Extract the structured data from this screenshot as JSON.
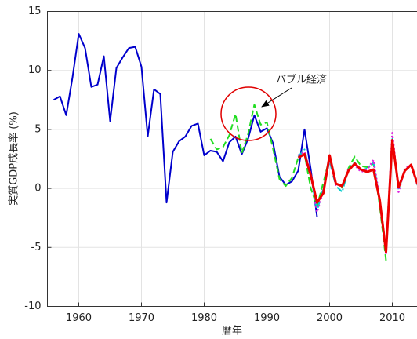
{
  "chart_data": {
    "type": "line",
    "xlabel": "暦年",
    "ylabel": "実質GDP成長率 (%)",
    "xlim": [
      1955,
      2015
    ],
    "xticks": [
      1960,
      1970,
      1980,
      1990,
      2000,
      2010
    ],
    "ylim": [
      -10,
      15
    ],
    "yticks": [
      -10,
      -5,
      0,
      5,
      10,
      15
    ],
    "grid": true,
    "annotations": [
      {
        "text": "バブル経済"
      }
    ],
    "series": [
      {
        "color": "#0000cc",
        "style": "solid",
        "width": 2,
        "x": [
          1956,
          1957,
          1958,
          1959,
          1960,
          1961,
          1962,
          1963,
          1964,
          1965,
          1966,
          1967,
          1968,
          1969,
          1970,
          1971,
          1972,
          1973,
          1974,
          1975,
          1976,
          1977,
          1978,
          1979,
          1980,
          1981,
          1982,
          1983,
          1984,
          1985,
          1986,
          1987,
          1988,
          1989,
          1990,
          1991,
          1992,
          1993,
          1994,
          1995,
          1996,
          1997,
          1998
        ],
        "values": [
          7.5,
          7.8,
          6.2,
          9.4,
          13.1,
          11.9,
          8.6,
          8.8,
          11.2,
          5.7,
          10.2,
          11.1,
          11.9,
          12.0,
          10.3,
          4.4,
          8.4,
          8.0,
          -1.2,
          3.1,
          4.0,
          4.4,
          5.3,
          5.5,
          2.8,
          3.2,
          3.1,
          2.3,
          3.9,
          4.4,
          2.9,
          4.2,
          6.2,
          4.8,
          5.1,
          3.8,
          1.0,
          0.3,
          0.6,
          1.5,
          5.0,
          1.6,
          -2.4
        ]
      },
      {
        "color": "#22dd22",
        "style": "dashed",
        "width": 2,
        "x": [
          1981,
          1982,
          1983,
          1984,
          1985,
          1986,
          1987,
          1988,
          1989,
          1990,
          1991,
          1992,
          1993,
          1994,
          1995,
          1996,
          1997,
          1998,
          1999,
          2000,
          2001,
          2002,
          2003,
          2004,
          2005,
          2006,
          2007,
          2008,
          2009
        ],
        "values": [
          4.2,
          3.3,
          3.5,
          4.5,
          6.3,
          3.0,
          4.6,
          7.1,
          5.4,
          5.6,
          3.3,
          0.8,
          0.2,
          0.9,
          2.6,
          2.9,
          0.0,
          -1.5,
          0.5,
          2.6,
          0.4,
          0.1,
          1.7,
          2.7,
          1.9,
          1.8,
          2.1,
          -1.5,
          -6.1
        ]
      },
      {
        "color": "#00cccc",
        "style": "dashdot",
        "width": 2,
        "x": [
          1995,
          1996,
          1997,
          1998,
          1999,
          2000,
          2001,
          2002,
          2003,
          2004,
          2005,
          2006,
          2007,
          2008,
          2009,
          2010,
          2011,
          2012,
          2013,
          2014,
          2015
        ],
        "values": [
          2.7,
          3.3,
          1.1,
          -1.9,
          0.0,
          2.3,
          0.2,
          -0.3,
          1.6,
          2.2,
          1.5,
          1.7,
          2.2,
          -1.0,
          -5.4,
          4.2,
          -0.1,
          1.5,
          1.9,
          0.3,
          1.1
        ]
      },
      {
        "color": "#dd22dd",
        "style": "dotted",
        "width": 2.5,
        "x": [
          1995,
          1996,
          1997,
          1998,
          1999,
          2000,
          2001,
          2002,
          2003,
          2004,
          2005,
          2006,
          2007,
          2008,
          2009,
          2010,
          2011,
          2012,
          2013,
          2014,
          2015
        ],
        "values": [
          2.8,
          3.1,
          1.2,
          -2.0,
          -0.2,
          2.5,
          0.3,
          0.2,
          1.6,
          2.0,
          1.4,
          1.6,
          2.4,
          -1.0,
          -5.5,
          4.7,
          -0.3,
          1.7,
          2.0,
          0.3,
          1.2
        ]
      },
      {
        "color": "#ee0000",
        "style": "solid",
        "width": 3,
        "x": [
          1995,
          1996,
          1997,
          1998,
          1999,
          2000,
          2001,
          2002,
          2003,
          2004,
          2005,
          2006,
          2007,
          2008,
          2009,
          2010,
          2011,
          2012,
          2013,
          2014,
          2015
        ],
        "values": [
          2.6,
          2.9,
          1.1,
          -1.2,
          -0.4,
          2.8,
          0.4,
          0.2,
          1.5,
          2.1,
          1.6,
          1.4,
          1.6,
          -1.0,
          -5.4,
          4.1,
          0.1,
          1.5,
          2.0,
          0.4,
          1.2
        ]
      }
    ]
  }
}
